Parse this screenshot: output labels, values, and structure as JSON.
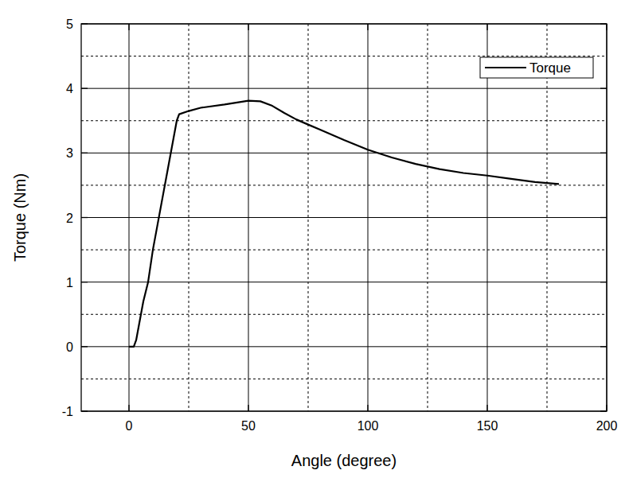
{
  "chart_data": {
    "type": "line",
    "x_label": "Angle (degree)",
    "y_label": "Torque (Nm)",
    "x": [
      0,
      2,
      3,
      4,
      5,
      6,
      8,
      10,
      12,
      14,
      16,
      18,
      20,
      21,
      25,
      30,
      40,
      50,
      55,
      60,
      65,
      70,
      75,
      80,
      90,
      100,
      110,
      120,
      130,
      140,
      150,
      160,
      170,
      180
    ],
    "series": [
      {
        "name": "Torque",
        "color": "#000000",
        "line_style": "solid",
        "values": [
          0,
          0,
          0.1,
          0.3,
          0.5,
          0.7,
          1.0,
          1.5,
          1.9,
          2.3,
          2.7,
          3.1,
          3.5,
          3.6,
          3.65,
          3.7,
          3.75,
          3.81,
          3.8,
          3.73,
          3.62,
          3.52,
          3.44,
          3.36,
          3.2,
          3.05,
          2.93,
          2.83,
          2.75,
          2.69,
          2.65,
          2.6,
          2.55,
          2.52
        ]
      }
    ],
    "xlim": [
      -20,
      200
    ],
    "ylim": [
      -1,
      5
    ],
    "xticks": [
      0,
      50,
      100,
      150,
      200
    ],
    "yticks": [
      -1,
      0,
      1,
      2,
      3,
      4,
      5
    ],
    "grid": true,
    "legend": "upper right"
  }
}
